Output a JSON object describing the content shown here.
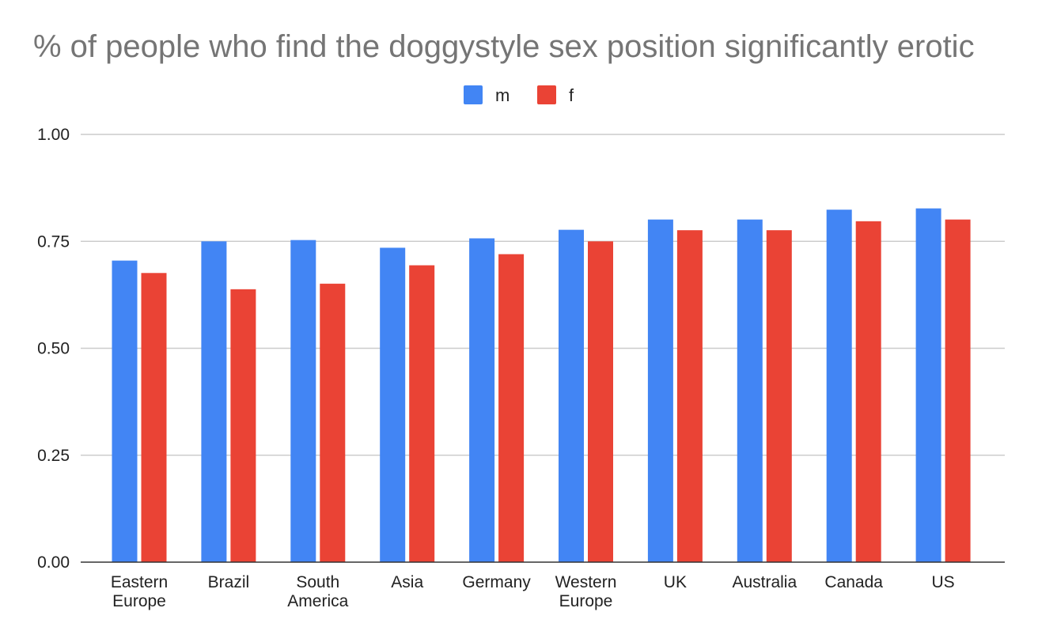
{
  "chart_data": {
    "type": "bar",
    "title": "% of people who find the doggystyle sex position significantly erotic",
    "xlabel": "",
    "ylabel": "",
    "categories": [
      [
        "Eastern",
        "Europe"
      ],
      [
        "Brazil"
      ],
      [
        "South",
        "America"
      ],
      [
        "Asia"
      ],
      [
        "Germany"
      ],
      [
        "Western",
        "Europe"
      ],
      [
        "UK"
      ],
      [
        "Australia"
      ],
      [
        "Canada"
      ],
      [
        "US"
      ]
    ],
    "series": [
      {
        "name": "m",
        "color": "#4285F4",
        "values": [
          0.705,
          0.75,
          0.753,
          0.735,
          0.757,
          0.777,
          0.801,
          0.801,
          0.824,
          0.827
        ]
      },
      {
        "name": "f",
        "color": "#EA4335",
        "values": [
          0.676,
          0.638,
          0.651,
          0.694,
          0.72,
          0.75,
          0.776,
          0.776,
          0.797,
          0.801
        ]
      }
    ],
    "ylim": [
      0,
      1
    ],
    "yticks": [
      "0.00",
      "0.25",
      "0.50",
      "0.75",
      "1.00"
    ],
    "ytick_values": [
      0,
      0.25,
      0.5,
      0.75,
      1.0
    ],
    "grid": true,
    "legend_position": "top-center"
  }
}
